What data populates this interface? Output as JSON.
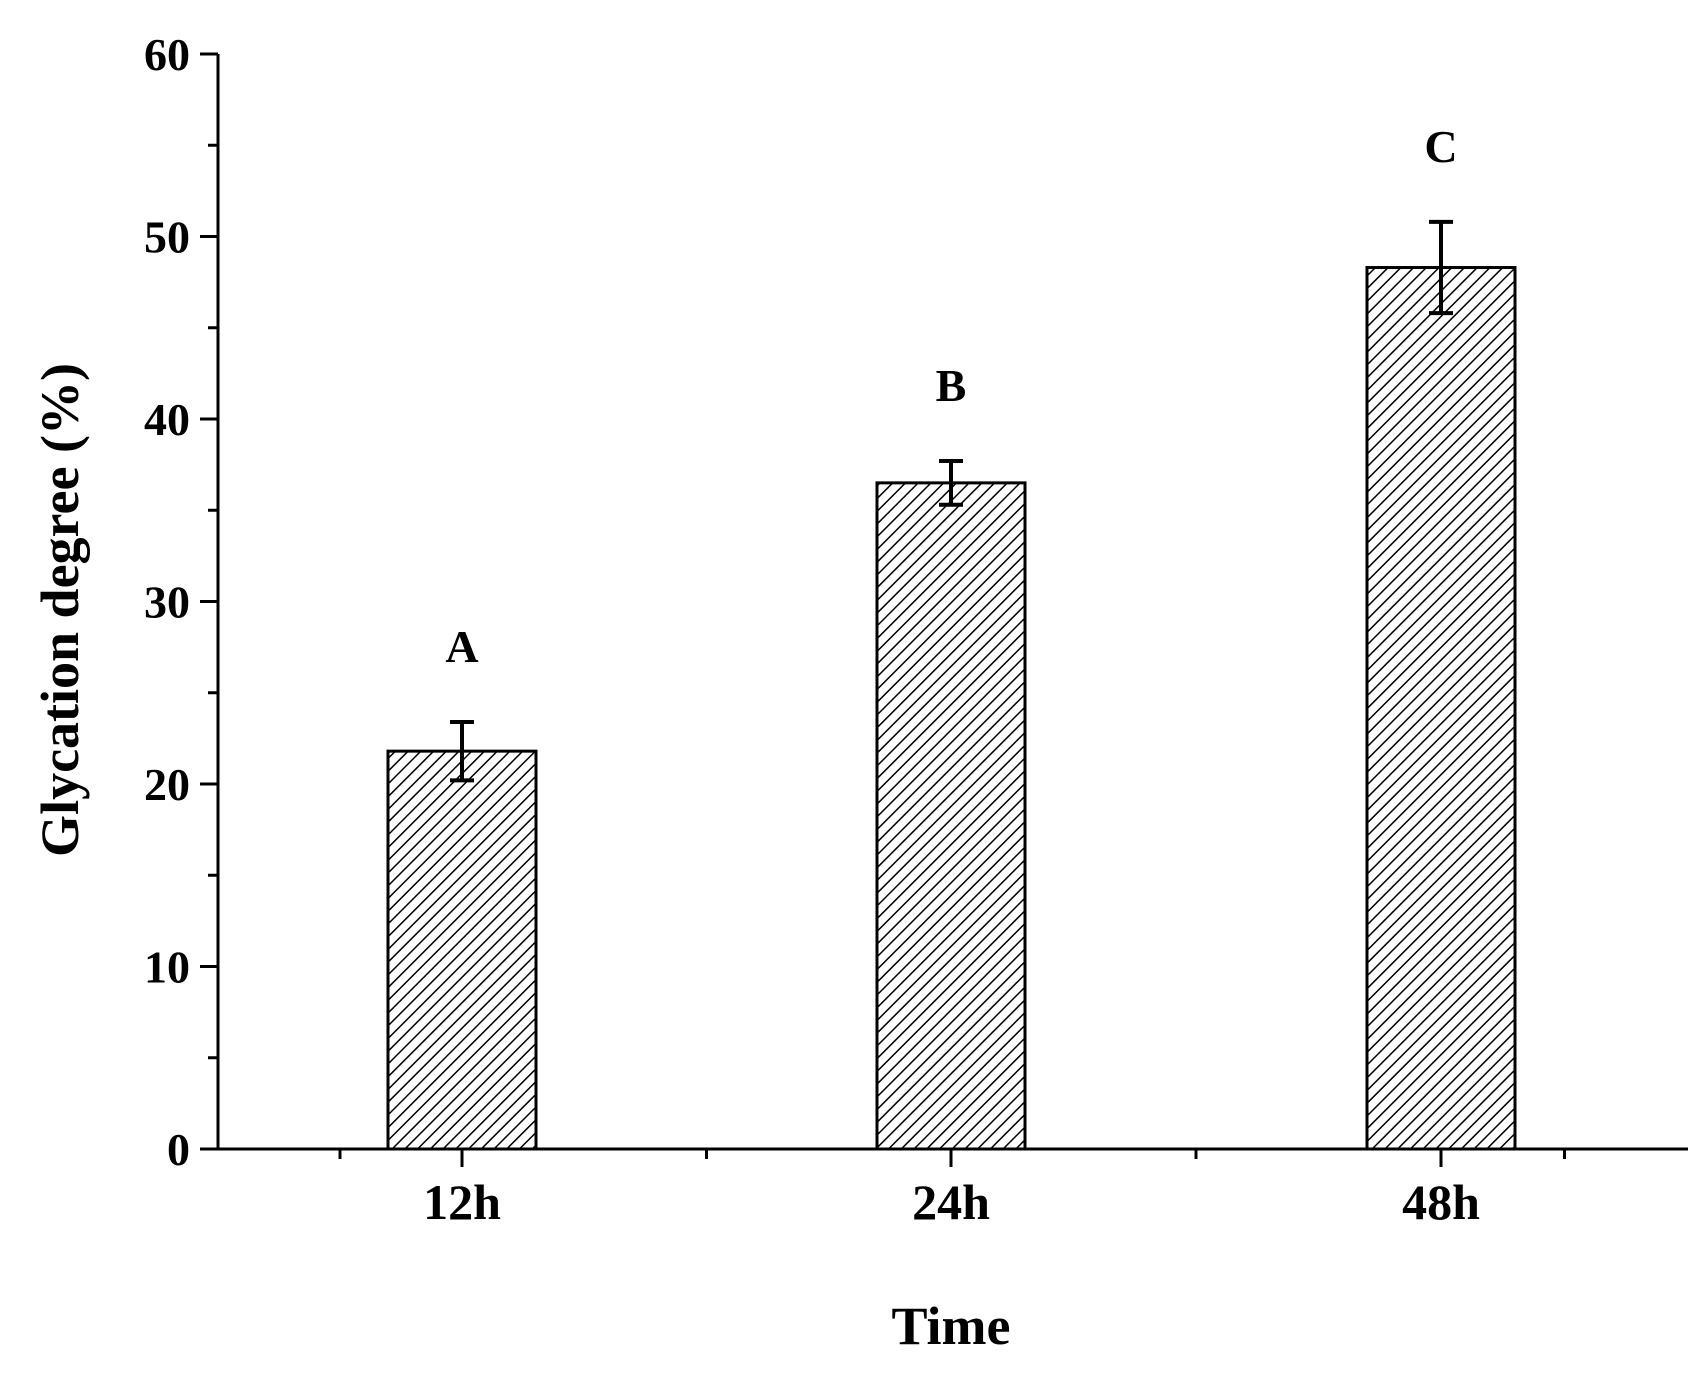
{
  "chart_data": {
    "type": "bar",
    "title": "",
    "xlabel": "Time",
    "ylabel": "Glycation degree (%)",
    "categories": [
      "12h",
      "24h",
      "48h"
    ],
    "values": [
      21.8,
      36.5,
      48.3
    ],
    "errors": [
      1.6,
      1.2,
      2.5
    ],
    "significance_letters": [
      "A",
      "B",
      "C"
    ],
    "ylim": [
      0,
      60
    ],
    "yticks": [
      0,
      10,
      20,
      30,
      40,
      50,
      60
    ],
    "ytick_labels": [
      "0",
      "10",
      "20",
      "30",
      "40",
      "50",
      "60"
    ],
    "bar_fill": "hatched",
    "colors": {
      "bar_stroke": "#000000",
      "hatch": "#000000",
      "axis": "#000000"
    },
    "grid": false,
    "legend": "none"
  }
}
